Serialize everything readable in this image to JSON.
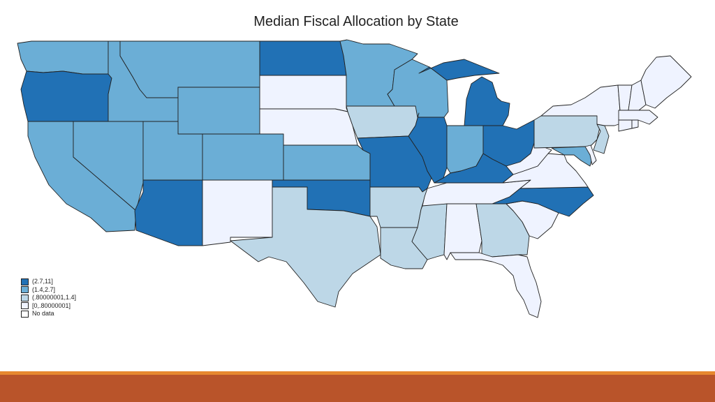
{
  "title": "Median Fiscal Allocation by State",
  "colors": {
    "bin4": "#2171b5",
    "bin3": "#6baed6",
    "bin2": "#bdd7e7",
    "bin1": "#eff3ff",
    "nodata": "#ffffff",
    "footer_line": "#e7882f",
    "footer_bar": "#b9542a"
  },
  "legend": [
    {
      "label": "(2.7,11]",
      "bin": "bin4"
    },
    {
      "label": "(1.4,2.7]",
      "bin": "bin3"
    },
    {
      "label": "(.80000001,1.4]",
      "bin": "bin2"
    },
    {
      "label": "[0,.80000001]",
      "bin": "bin1"
    },
    {
      "label": "No data",
      "bin": "nodata"
    }
  ],
  "states": {
    "WA": "bin3",
    "OR": "bin4",
    "CA": "bin3",
    "NV": "bin3",
    "ID": "bin3",
    "MT": "bin3",
    "WY": "bin3",
    "UT": "bin3",
    "CO": "bin3",
    "AZ": "bin4",
    "NM": "bin1",
    "ND": "bin4",
    "SD": "bin1",
    "NE": "bin1",
    "KS": "bin3",
    "OK": "bin4",
    "TX": "bin2",
    "MN": "bin3",
    "IA": "bin2",
    "MO": "bin4",
    "AR": "bin2",
    "LA": "bin2",
    "WI": "bin3",
    "IL": "bin4",
    "MI": "bin4",
    "IN": "bin3",
    "OH": "bin4",
    "KY": "bin4",
    "TN": "bin1",
    "MS": "bin2",
    "AL": "bin1",
    "GA": "bin2",
    "FL": "bin1",
    "SC": "bin1",
    "NC": "bin4",
    "VA": "bin1",
    "WV": "bin1",
    "PA": "bin2",
    "NY": "bin1",
    "NJ": "bin2",
    "DE": "bin1",
    "MD": "bin3",
    "VT": "bin1",
    "NH": "bin1",
    "ME": "bin1",
    "MA": "bin1",
    "CT": "bin1",
    "RI": "bin1"
  }
}
